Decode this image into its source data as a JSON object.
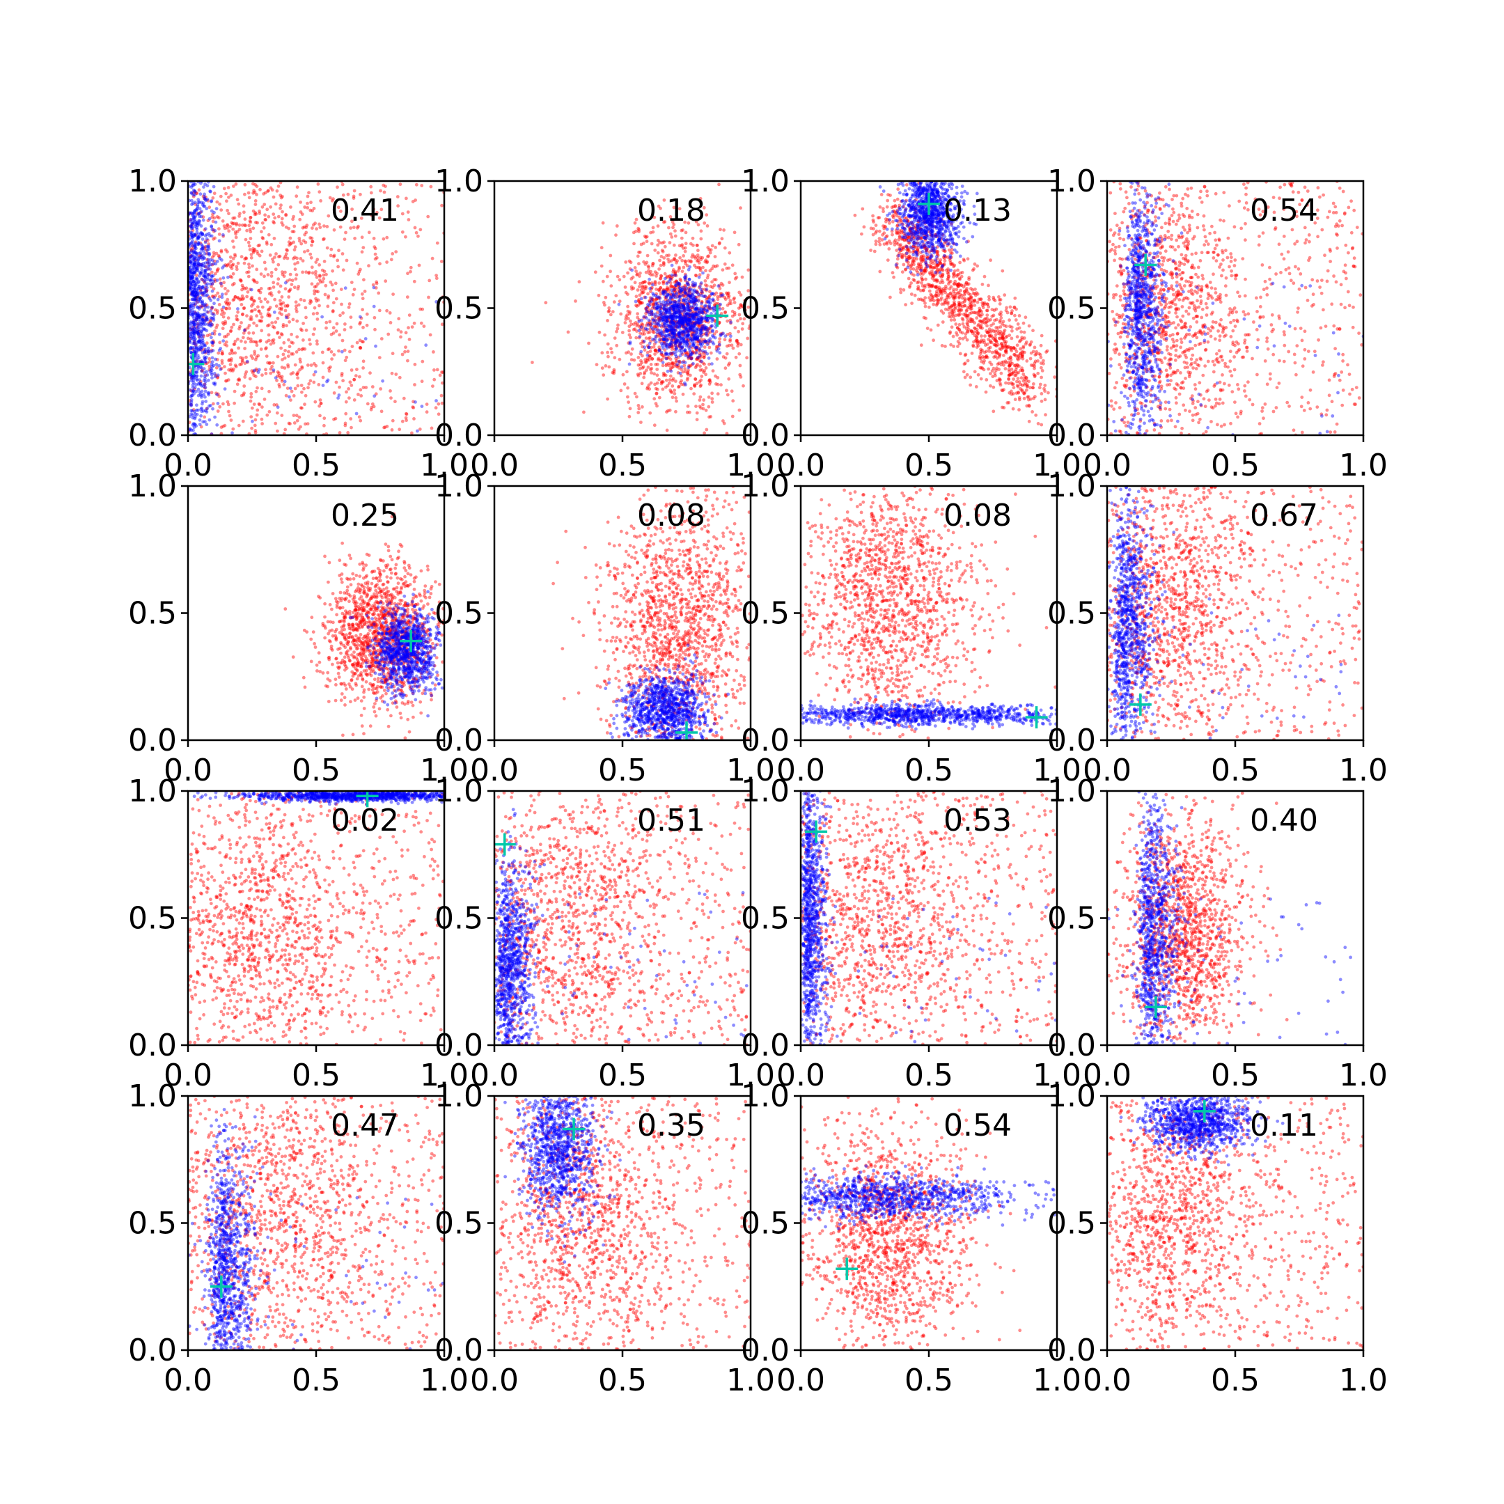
{
  "figure": {
    "rows": 4,
    "cols": 4,
    "marker_color": "#00c8aa",
    "series_colors": {
      "red": "#ff0000",
      "blue": "#0000ff"
    }
  },
  "chart_data": [
    {
      "type": "scatter",
      "xlim": [
        0,
        1
      ],
      "ylim": [
        0,
        1
      ],
      "xticks": [
        "0.0",
        "0.5",
        "1.0"
      ],
      "yticks": [
        "0.0",
        "0.5",
        "1.0"
      ],
      "annotation": "0.41",
      "marker": [
        0.02,
        0.28
      ],
      "red": {
        "shape": "diffuse",
        "cx": 0.25,
        "cy": 0.55,
        "sx": 0.22,
        "sy": 0.3
      },
      "blue": {
        "shape": "band_x",
        "cx": 0.03,
        "cy": 0.55,
        "sx": 0.04,
        "sy": 0.32
      }
    },
    {
      "type": "scatter",
      "xlim": [
        0,
        1
      ],
      "ylim": [
        0,
        1
      ],
      "xticks": [
        "0.0",
        "0.5",
        "1.0"
      ],
      "yticks": [
        "0.0",
        "0.5",
        "1.0"
      ],
      "annotation": "0.18",
      "marker": [
        0.87,
        0.47
      ],
      "red": {
        "shape": "blob",
        "cx": 0.72,
        "cy": 0.45,
        "sx": 0.13,
        "sy": 0.18
      },
      "blue": {
        "shape": "blob",
        "cx": 0.73,
        "cy": 0.45,
        "sx": 0.07,
        "sy": 0.08
      }
    },
    {
      "type": "scatter",
      "xlim": [
        0,
        1
      ],
      "ylim": [
        0,
        1
      ],
      "xticks": [
        "0.0",
        "0.5",
        "1.0"
      ],
      "yticks": [
        "0.0",
        "0.5",
        "1.0"
      ],
      "annotation": "0.13",
      "marker": [
        0.5,
        0.91
      ],
      "red": {
        "shape": "arc",
        "cx": 0.55,
        "cy": 0.55,
        "sx": 0.15,
        "sy": 0.2
      },
      "blue": {
        "shape": "blob",
        "cx": 0.5,
        "cy": 0.88,
        "sx": 0.06,
        "sy": 0.09
      }
    },
    {
      "type": "scatter",
      "xlim": [
        0,
        1
      ],
      "ylim": [
        0,
        1
      ],
      "xticks": [
        "0.0",
        "0.5",
        "1.0"
      ],
      "yticks": [
        "0.0",
        "0.5",
        "1.0"
      ],
      "annotation": "0.54",
      "marker": [
        0.15,
        0.67
      ],
      "red": {
        "shape": "diffuse",
        "cx": 0.25,
        "cy": 0.5,
        "sx": 0.15,
        "sy": 0.25
      },
      "blue": {
        "shape": "band_x",
        "cx": 0.13,
        "cy": 0.5,
        "sx": 0.05,
        "sy": 0.25
      }
    },
    {
      "type": "scatter",
      "xlim": [
        0,
        1
      ],
      "ylim": [
        0,
        1
      ],
      "xticks": [
        "0.0",
        "0.5",
        "1.0"
      ],
      "yticks": [
        "0.0",
        "0.5",
        "1.0"
      ],
      "annotation": "0.25",
      "marker": [
        0.87,
        0.39
      ],
      "red": {
        "shape": "blob",
        "cx": 0.75,
        "cy": 0.42,
        "sx": 0.11,
        "sy": 0.14
      },
      "blue": {
        "shape": "blob",
        "cx": 0.85,
        "cy": 0.35,
        "sx": 0.06,
        "sy": 0.08
      }
    },
    {
      "type": "scatter",
      "xlim": [
        0,
        1
      ],
      "ylim": [
        0,
        1
      ],
      "xticks": [
        "0.0",
        "0.5",
        "1.0"
      ],
      "yticks": [
        "0.0",
        "0.5",
        "1.0"
      ],
      "annotation": "0.08",
      "marker": [
        0.75,
        0.03
      ],
      "red": {
        "shape": "blob",
        "cx": 0.72,
        "cy": 0.45,
        "sx": 0.15,
        "sy": 0.26
      },
      "blue": {
        "shape": "blob",
        "cx": 0.67,
        "cy": 0.12,
        "sx": 0.08,
        "sy": 0.07
      }
    },
    {
      "type": "scatter",
      "xlim": [
        0,
        1
      ],
      "ylim": [
        0,
        1
      ],
      "xticks": [
        "0.0",
        "0.5",
        "1.0"
      ],
      "yticks": [
        "0.0",
        "0.5",
        "1.0"
      ],
      "annotation": "0.08",
      "marker": [
        0.92,
        0.09
      ],
      "red": {
        "shape": "blob",
        "cx": 0.35,
        "cy": 0.55,
        "sx": 0.17,
        "sy": 0.25
      },
      "blue": {
        "shape": "band_y",
        "cx": 0.45,
        "cy": 0.1,
        "sx": 0.3,
        "sy": 0.02
      }
    },
    {
      "type": "scatter",
      "xlim": [
        0,
        1
      ],
      "ylim": [
        0,
        1
      ],
      "xticks": [
        "0.0",
        "0.5",
        "1.0"
      ],
      "yticks": [
        "0.0",
        "0.5",
        "1.0"
      ],
      "annotation": "0.67",
      "marker": [
        0.13,
        0.14
      ],
      "red": {
        "shape": "diffuse",
        "cx": 0.25,
        "cy": 0.55,
        "sx": 0.15,
        "sy": 0.28
      },
      "blue": {
        "shape": "band_x",
        "cx": 0.08,
        "cy": 0.45,
        "sx": 0.05,
        "sy": 0.28
      }
    },
    {
      "type": "scatter",
      "xlim": [
        0,
        1
      ],
      "ylim": [
        0,
        1
      ],
      "xticks": [
        "0.0",
        "0.5",
        "1.0"
      ],
      "yticks": [
        "0.0",
        "0.5",
        "1.0"
      ],
      "annotation": "0.02",
      "marker": [
        0.7,
        0.98
      ],
      "red": {
        "shape": "diffuse",
        "cx": 0.28,
        "cy": 0.45,
        "sx": 0.18,
        "sy": 0.25
      },
      "blue": {
        "shape": "band_y",
        "cx": 0.65,
        "cy": 0.98,
        "sx": 0.22,
        "sy": 0.01
      }
    },
    {
      "type": "scatter",
      "xlim": [
        0,
        1
      ],
      "ylim": [
        0,
        1
      ],
      "xticks": [
        "0.0",
        "0.5",
        "1.0"
      ],
      "yticks": [
        "0.0",
        "0.5",
        "1.0"
      ],
      "annotation": "0.51",
      "marker": [
        0.04,
        0.79
      ],
      "red": {
        "shape": "diffuse",
        "cx": 0.3,
        "cy": 0.5,
        "sx": 0.2,
        "sy": 0.28
      },
      "blue": {
        "shape": "band_x",
        "cx": 0.06,
        "cy": 0.3,
        "sx": 0.05,
        "sy": 0.22
      }
    },
    {
      "type": "scatter",
      "xlim": [
        0,
        1
      ],
      "ylim": [
        0,
        1
      ],
      "xticks": [
        "0.0",
        "0.5",
        "1.0"
      ],
      "yticks": [
        "0.0",
        "0.5",
        "1.0"
      ],
      "annotation": "0.53",
      "marker": [
        0.06,
        0.84
      ],
      "red": {
        "shape": "diffuse",
        "cx": 0.3,
        "cy": 0.5,
        "sx": 0.2,
        "sy": 0.28
      },
      "blue": {
        "shape": "band_x",
        "cx": 0.04,
        "cy": 0.5,
        "sx": 0.03,
        "sy": 0.3
      }
    },
    {
      "type": "scatter",
      "xlim": [
        0,
        1
      ],
      "ylim": [
        0,
        1
      ],
      "xticks": [
        "0.0",
        "0.5",
        "1.0"
      ],
      "yticks": [
        "0.0",
        "0.5",
        "1.0"
      ],
      "annotation": "0.40",
      "marker": [
        0.19,
        0.15
      ],
      "red": {
        "shape": "blob",
        "cx": 0.3,
        "cy": 0.45,
        "sx": 0.12,
        "sy": 0.24
      },
      "blue": {
        "shape": "band_x",
        "cx": 0.18,
        "cy": 0.4,
        "sx": 0.05,
        "sy": 0.26
      }
    },
    {
      "type": "scatter",
      "xlim": [
        0,
        1
      ],
      "ylim": [
        0,
        1
      ],
      "xticks": [
        "0.0",
        "0.5",
        "1.0"
      ],
      "yticks": [
        "0.0",
        "0.5",
        "1.0"
      ],
      "annotation": "0.47",
      "marker": [
        0.13,
        0.25
      ],
      "red": {
        "shape": "diffuse",
        "cx": 0.35,
        "cy": 0.55,
        "sx": 0.22,
        "sy": 0.28
      },
      "blue": {
        "shape": "band_x",
        "cx": 0.15,
        "cy": 0.3,
        "sx": 0.06,
        "sy": 0.28
      }
    },
    {
      "type": "scatter",
      "xlim": [
        0,
        1
      ],
      "ylim": [
        0,
        1
      ],
      "xticks": [
        "0.0",
        "0.5",
        "1.0"
      ],
      "yticks": [
        "0.0",
        "0.5",
        "1.0"
      ],
      "annotation": "0.35",
      "marker": [
        0.31,
        0.87
      ],
      "red": {
        "shape": "diffuse",
        "cx": 0.35,
        "cy": 0.5,
        "sx": 0.18,
        "sy": 0.25
      },
      "blue": {
        "shape": "blob",
        "cx": 0.25,
        "cy": 0.8,
        "sx": 0.07,
        "sy": 0.14
      }
    },
    {
      "type": "scatter",
      "xlim": [
        0,
        1
      ],
      "ylim": [
        0,
        1
      ],
      "xticks": [
        "0.0",
        "0.5",
        "1.0"
      ],
      "yticks": [
        "0.0",
        "0.5",
        "1.0"
      ],
      "annotation": "0.54",
      "marker": [
        0.18,
        0.32
      ],
      "red": {
        "shape": "blob",
        "cx": 0.35,
        "cy": 0.45,
        "sx": 0.16,
        "sy": 0.22
      },
      "blue": {
        "shape": "band_y",
        "cx": 0.35,
        "cy": 0.6,
        "sx": 0.25,
        "sy": 0.04
      }
    },
    {
      "type": "scatter",
      "xlim": [
        0,
        1
      ],
      "ylim": [
        0,
        1
      ],
      "xticks": [
        "0.0",
        "0.5",
        "1.0"
      ],
      "yticks": [
        "0.0",
        "0.5",
        "1.0"
      ],
      "annotation": "0.11",
      "marker": [
        0.38,
        0.94
      ],
      "red": {
        "shape": "diffuse",
        "cx": 0.25,
        "cy": 0.5,
        "sx": 0.18,
        "sy": 0.25
      },
      "blue": {
        "shape": "blob",
        "cx": 0.35,
        "cy": 0.9,
        "sx": 0.1,
        "sy": 0.06
      }
    }
  ]
}
